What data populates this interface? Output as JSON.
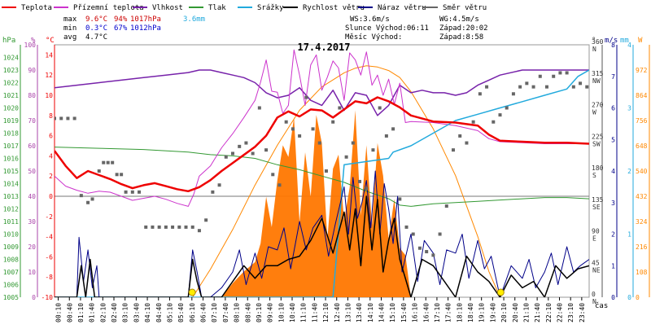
{
  "chart_data": {
    "type": "line",
    "title": "17.4.2017",
    "xlabel": "čas",
    "x_unit": "hours",
    "xlim": [
      0,
      24
    ],
    "x_tick_labels": [
      "00:10",
      "00:40",
      "01:10",
      "01:40",
      "02:10",
      "02:40",
      "03:10",
      "03:40",
      "04:10",
      "04:40",
      "05:10",
      "05:40",
      "06:10",
      "06:40",
      "07:10",
      "07:40",
      "08:10",
      "08:40",
      "09:10",
      "09:40",
      "10:10",
      "10:40",
      "11:10",
      "11:40",
      "12:10",
      "12:40",
      "13:10",
      "13:40",
      "14:10",
      "14:40",
      "15:10",
      "15:40",
      "16:10",
      "16:40",
      "17:10",
      "17:40",
      "18:10",
      "18:40",
      "19:10",
      "19:40",
      "20:10",
      "20:40",
      "21:10",
      "21:40",
      "22:10",
      "22:40",
      "23:10",
      "23:40"
    ],
    "legend": [
      {
        "name": "Teplota",
        "color": "#ee0000"
      },
      {
        "name": "Přízemní teplota",
        "color": "#cc33cc"
      },
      {
        "name": "Vlhkost",
        "color": "#7722aa"
      },
      {
        "name": "Tlak",
        "color": "#339933"
      },
      {
        "name": "Srážky",
        "color": "#22aadd"
      },
      {
        "name": "Rychlost větru",
        "color": "#000000"
      },
      {
        "name": "Náraz větru",
        "color": "#000088"
      },
      {
        "name": "Směr větru",
        "color": "#666666"
      }
    ],
    "stats": {
      "max_label": "max",
      "max_temp": "9.6°C",
      "max_hum": "94%",
      "max_press": "1017hPa",
      "rain_total": "3.6mm",
      "min_label": "min",
      "min_temp": "0.3°C",
      "min_hum": "67%",
      "min_press": "1012hPa",
      "avg_label": "avg",
      "avg_temp": "4.7°C",
      "ws": "WS:3.6m/s",
      "wg": "WG:4.5m/s",
      "sun": "Slunce Východ:06:11",
      "sunset": "Západ:20:02",
      "moon": "Měsíc  Východ:",
      "moonset": "Západ:8:58"
    },
    "axes": {
      "pressure": {
        "unit": "hPa",
        "ylim": [
          1005,
          1025
        ],
        "ticks": [
          1005,
          1006,
          1007,
          1008,
          1009,
          1010,
          1011,
          1012,
          1013,
          1014,
          1015,
          1016,
          1017,
          1018,
          1019,
          1020,
          1021,
          1022,
          1023,
          1024
        ]
      },
      "humidity": {
        "unit": "%",
        "ylim": [
          0,
          100
        ],
        "ticks": [
          0,
          10,
          20,
          30,
          40,
          50,
          60,
          70,
          80,
          90,
          100
        ]
      },
      "temperature": {
        "unit": "°C",
        "ylim": [
          -10,
          15
        ],
        "ticks": [
          -10,
          -8,
          -6,
          -4,
          -2,
          0,
          2,
          4,
          6,
          8,
          10,
          12,
          14
        ]
      },
      "direction": {
        "unit": "°",
        "ylim": [
          0,
          360
        ],
        "ticks": [
          {
            "v": 0,
            "t": "0"
          },
          {
            "v": 45,
            "t": "45"
          },
          {
            "v": 90,
            "t": "90"
          },
          {
            "v": 135,
            "t": "135"
          },
          {
            "v": 180,
            "t": "180"
          },
          {
            "v": 225,
            "t": "225"
          },
          {
            "v": 270,
            "t": "270"
          },
          {
            "v": 315,
            "t": "315"
          },
          {
            "v": 360,
            "t": "360"
          }
        ],
        "letters": [
          {
            "v": 0,
            "t": "N"
          },
          {
            "v": 45,
            "t": "NE"
          },
          {
            "v": 90,
            "t": "E"
          },
          {
            "v": 135,
            "t": "SE"
          },
          {
            "v": 180,
            "t": "S"
          },
          {
            "v": 225,
            "t": "SW"
          },
          {
            "v": 270,
            "t": "W"
          },
          {
            "v": 315,
            "t": "NW"
          },
          {
            "v": 360,
            "t": "N"
          }
        ]
      },
      "wind": {
        "unit": "m/s",
        "ylim": [
          0,
          8
        ],
        "ticks": [
          0,
          1,
          2,
          3,
          4,
          5,
          6,
          7,
          8
        ]
      },
      "rain": {
        "unit": "mm",
        "ylim": [
          0,
          4
        ],
        "ticks": [
          0,
          1,
          2,
          3,
          4
        ]
      },
      "radiation": {
        "unit": "W",
        "ylim": [
          0,
          1080
        ],
        "ticks": [
          0,
          108,
          216,
          324,
          432,
          540,
          648,
          756,
          864,
          972
        ]
      }
    },
    "series": [
      {
        "name": "Teplota",
        "axis": "temperature",
        "color": "#ee0000",
        "width": 2.5,
        "x": [
          0,
          0.5,
          1,
          1.5,
          2,
          2.5,
          3,
          3.5,
          4,
          4.5,
          5,
          5.5,
          6,
          6.5,
          7,
          7.5,
          8,
          8.5,
          9,
          9.5,
          10,
          10.5,
          11,
          11.5,
          12,
          12.5,
          13,
          13.5,
          14,
          14.5,
          15,
          15.5,
          16,
          17,
          18,
          19,
          19.5,
          20,
          21,
          22,
          23,
          24
        ],
        "y": [
          4.5,
          3.0,
          1.8,
          2.5,
          2.1,
          1.7,
          1.2,
          0.8,
          1.1,
          1.3,
          1.0,
          0.7,
          0.5,
          0.9,
          1.6,
          2.5,
          3.3,
          4.1,
          4.9,
          6.0,
          7.8,
          8.4,
          7.9,
          8.6,
          8.5,
          7.8,
          8.6,
          9.4,
          9.2,
          9.8,
          9.4,
          8.8,
          8.0,
          7.4,
          7.3,
          7.0,
          6.1,
          5.5,
          5.4,
          5.3,
          5.3,
          5.2
        ]
      },
      {
        "name": "Přízemní teplota",
        "axis": "temperature",
        "color": "#cc33cc",
        "width": 1,
        "x": [
          0,
          0.5,
          1,
          1.5,
          2,
          2.5,
          3,
          3.5,
          4,
          4.5,
          5,
          5.5,
          6,
          6.25,
          6.5,
          7,
          7.5,
          8,
          8.5,
          9,
          9.25,
          9.5,
          9.75,
          10,
          10.25,
          10.5,
          10.75,
          11,
          11.25,
          11.5,
          11.75,
          12,
          12.25,
          12.5,
          12.75,
          13,
          13.25,
          13.5,
          13.75,
          14,
          14.25,
          14.5,
          14.75,
          15,
          15.25,
          15.5,
          15.75,
          16,
          17,
          18,
          19,
          19.5,
          20,
          21,
          22,
          23,
          24
        ],
        "y": [
          2.0,
          1.0,
          0.6,
          0.3,
          0.5,
          0.4,
          0.0,
          -0.4,
          -0.2,
          0.0,
          -0.3,
          -0.7,
          -1.0,
          0.2,
          2.0,
          3.0,
          4.8,
          6.2,
          7.8,
          9.5,
          11.3,
          13.5,
          10.4,
          10.3,
          8.2,
          9.0,
          14.5,
          12.0,
          9.0,
          13.0,
          14.0,
          10.5,
          11.8,
          13.4,
          12.7,
          9.5,
          14.2,
          13.5,
          12.0,
          14.3,
          11.0,
          12.0,
          10.0,
          11.6,
          9.1,
          11.2,
          7.3,
          7.4,
          7.3,
          7.0,
          6.5,
          5.7,
          5.4,
          5.3,
          5.2,
          5.2,
          5.2
        ]
      },
      {
        "name": "Vlhkost",
        "axis": "humidity",
        "color": "#7722aa",
        "width": 1.5,
        "x": [
          0,
          1,
          2,
          3,
          4,
          5,
          6,
          6.5,
          7,
          7.5,
          8,
          8.5,
          9,
          9.5,
          10,
          10.5,
          11,
          11.5,
          12,
          12.5,
          13,
          13.5,
          14,
          14.5,
          15,
          15.5,
          16,
          16.5,
          17,
          17.5,
          18,
          18.5,
          19,
          19.5,
          20,
          21,
          22,
          23,
          24
        ],
        "y": [
          83,
          84,
          85,
          86,
          87,
          88,
          89,
          90,
          90,
          89,
          88,
          87,
          85,
          81,
          79,
          80,
          83,
          78,
          76,
          82,
          74,
          81,
          80,
          72,
          76,
          84,
          81,
          82,
          81,
          81,
          80,
          81,
          84,
          86,
          88,
          90,
          90,
          90,
          90
        ]
      },
      {
        "name": "Tlak",
        "axis": "pressure",
        "color": "#339933",
        "width": 1,
        "x": [
          0,
          2,
          4,
          6,
          7,
          8,
          9,
          10,
          11,
          12,
          13,
          14,
          15,
          15.5,
          16,
          17,
          18,
          19,
          20,
          21,
          22,
          23,
          24
        ],
        "y": [
          1016.9,
          1016.8,
          1016.7,
          1016.5,
          1016.3,
          1016.2,
          1016.0,
          1015.5,
          1015.1,
          1014.6,
          1014.1,
          1013.4,
          1012.8,
          1012.3,
          1012.2,
          1012.4,
          1012.5,
          1012.6,
          1012.7,
          1012.8,
          1012.9,
          1012.9,
          1012.8
        ]
      },
      {
        "name": "Srážky",
        "axis": "rain",
        "color": "#22aadd",
        "width": 1.5,
        "x": [
          0,
          12,
          12.5,
          13,
          14,
          15,
          15.2,
          16,
          17,
          18,
          19,
          20,
          21,
          22,
          23,
          23.5,
          24
        ],
        "y": [
          0,
          0,
          0,
          2.1,
          2.15,
          2.2,
          2.3,
          2.4,
          2.6,
          2.8,
          2.9,
          3.0,
          3.1,
          3.2,
          3.3,
          3.5,
          3.6
        ]
      },
      {
        "name": "Rychlost větru",
        "axis": "wind",
        "color": "#000000",
        "width": 1.5,
        "x": [
          0,
          1,
          1.2,
          1.4,
          1.6,
          1.8,
          2,
          4,
          6,
          6.2,
          6.4,
          6.6,
          7,
          7.5,
          8,
          8.5,
          9,
          9.5,
          10,
          10.5,
          11,
          11.5,
          12,
          12.5,
          13,
          13.25,
          13.5,
          13.75,
          14,
          14.25,
          14.5,
          14.75,
          15,
          15.25,
          15.5,
          16,
          16.5,
          17,
          17.5,
          18,
          18.5,
          19,
          19.5,
          20,
          20.5,
          21,
          21.5,
          22,
          22.5,
          23,
          23.5,
          24
        ],
        "y": [
          0,
          0,
          1.0,
          0,
          1.2,
          0,
          0,
          0,
          0,
          1.2,
          0.5,
          0,
          0,
          0,
          0.5,
          1.0,
          0.6,
          1.0,
          1.0,
          1.2,
          1.3,
          1.8,
          2.5,
          1.4,
          2.7,
          1.5,
          2.8,
          1.0,
          3.2,
          1.5,
          3.1,
          0.8,
          1.8,
          2.5,
          1.2,
          0,
          1.2,
          1.0,
          0.5,
          0,
          1.3,
          0.8,
          0.5,
          0,
          0.7,
          0.3,
          0.5,
          0,
          1.0,
          0.6,
          0.9,
          1.0
        ]
      },
      {
        "name": "Náraz větru",
        "axis": "wind",
        "color": "#000088",
        "width": 1,
        "x": [
          0,
          1,
          1.1,
          1.3,
          1.5,
          1.7,
          1.9,
          2,
          4,
          6,
          6.2,
          6.4,
          6.6,
          7,
          7.5,
          8,
          8.3,
          8.6,
          9,
          9.3,
          9.6,
          10,
          10.3,
          10.6,
          11,
          11.3,
          11.6,
          12,
          12.3,
          12.6,
          13,
          13.2,
          13.4,
          13.6,
          13.8,
          14,
          14.2,
          14.4,
          14.6,
          14.8,
          15,
          15.2,
          15.4,
          15.6,
          16,
          16.3,
          16.6,
          17,
          17.3,
          17.6,
          18,
          18.3,
          18.6,
          19,
          19.3,
          19.6,
          20,
          20.5,
          21,
          21.3,
          21.6,
          22,
          22.3,
          22.6,
          23,
          23.3,
          23.6,
          24
        ],
        "y": [
          0,
          0,
          1.9,
          0.5,
          1.5,
          0.3,
          1.0,
          0,
          0,
          0,
          1.5,
          0.8,
          0,
          0,
          0.3,
          0.8,
          1.5,
          0.4,
          1.4,
          0.6,
          1.6,
          1.5,
          2.2,
          0.9,
          2.4,
          1.5,
          2.2,
          2.6,
          1.3,
          2.3,
          3.5,
          2.0,
          3.8,
          2.5,
          3.0,
          3.7,
          2.2,
          4.0,
          2.0,
          3.6,
          2.8,
          1.7,
          3.2,
          0.8,
          2.0,
          0.5,
          1.8,
          1.4,
          0.4,
          1.5,
          1.4,
          2.0,
          0.6,
          1.8,
          0.9,
          1.3,
          0,
          1.0,
          0.6,
          1.2,
          0.3,
          0.8,
          1.4,
          0.4,
          1.6,
          0.8,
          1.0,
          1.2
        ]
      },
      {
        "name": "Radiation",
        "axis": "radiation",
        "color": "#ff8800",
        "width": 1,
        "legend": false,
        "x": [
          6.2,
          7,
          8,
          9,
          10,
          11,
          12,
          13,
          13.5,
          14,
          14.5,
          15,
          15.5,
          16,
          17,
          18,
          19,
          19.5,
          20
        ],
        "y": [
          0,
          120,
          290,
          480,
          650,
          800,
          900,
          960,
          980,
          990,
          985,
          970,
          940,
          880,
          720,
          520,
          260,
          110,
          0
        ]
      },
      {
        "name": "Radiation area",
        "axis": "radiation",
        "color": "#ff7700",
        "width": 0,
        "legend": false,
        "x": [
          7.5,
          8,
          8.5,
          9,
          9.25,
          9.5,
          9.75,
          10,
          10.25,
          10.5,
          10.75,
          11,
          11.25,
          11.5,
          11.75,
          12,
          12.25,
          12.5,
          12.75,
          13,
          13.25,
          13.5,
          13.75,
          14,
          14.25,
          14.5,
          14.75,
          15,
          15.25,
          15.5,
          15.75,
          16
        ],
        "y": [
          0,
          60,
          110,
          150,
          230,
          430,
          300,
          500,
          650,
          600,
          770,
          320,
          620,
          430,
          780,
          660,
          250,
          550,
          610,
          330,
          470,
          800,
          350,
          650,
          310,
          660,
          520,
          250,
          420,
          210,
          180,
          0
        ]
      }
    ],
    "direction_points": {
      "axis": "direction",
      "color": "#666666",
      "x": [
        0,
        0.3,
        0.6,
        0.9,
        1.2,
        1.5,
        1.7,
        2,
        2.2,
        2.4,
        2.6,
        2.8,
        3,
        3.2,
        3.5,
        3.8,
        4.1,
        4.4,
        4.7,
        5,
        5.3,
        5.6,
        5.9,
        6.2,
        6.5,
        6.8,
        7.1,
        7.4,
        7.7,
        8,
        8.3,
        8.6,
        8.9,
        9.2,
        9.5,
        9.8,
        10.1,
        10.4,
        10.7,
        11,
        11.3,
        11.6,
        11.9,
        12.2,
        12.5,
        12.8,
        13.1,
        13.4,
        13.7,
        14,
        14.3,
        14.6,
        14.9,
        15.2,
        15.5,
        15.8,
        16.1,
        16.4,
        16.7,
        17,
        17.3,
        17.6,
        17.9,
        18.2,
        18.5,
        18.8,
        19.1,
        19.4,
        19.7,
        20,
        20.3,
        20.6,
        20.9,
        21.2,
        21.5,
        21.8,
        22.1,
        22.4,
        22.7,
        23,
        23.3,
        23.6,
        23.9
      ],
      "y": [
        255,
        255,
        255,
        255,
        145,
        135,
        140,
        180,
        192,
        192,
        192,
        175,
        175,
        150,
        150,
        150,
        100,
        100,
        100,
        100,
        100,
        100,
        100,
        100,
        95,
        110,
        150,
        160,
        200,
        205,
        215,
        220,
        205,
        270,
        210,
        175,
        160,
        250,
        240,
        230,
        285,
        240,
        220,
        180,
        250,
        270,
        200,
        220,
        165,
        155,
        210,
        270,
        230,
        240,
        140,
        100,
        90,
        70,
        65,
        60,
        90,
        130,
        210,
        230,
        220,
        250,
        290,
        300,
        250,
        260,
        270,
        290,
        300,
        305,
        300,
        315,
        300,
        315,
        320,
        320,
        300,
        305,
        300
      ]
    },
    "sun_markers": [
      {
        "x": 6.18,
        "label": "sunrise"
      },
      {
        "x": 20.03,
        "label": "sunset"
      }
    ]
  }
}
